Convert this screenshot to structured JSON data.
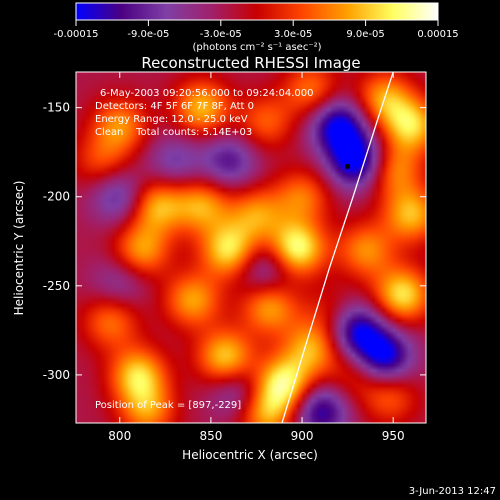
{
  "chart_data": {
    "type": "heatmap",
    "title": "Reconstructed RHESSI Image",
    "xlabel": "Heliocentric X (arcsec)",
    "ylabel": "Heliocentric Y (arcsec)",
    "xlim": [
      776,
      968
    ],
    "ylim": [
      -327,
      -130
    ],
    "xticks": [
      800,
      850,
      900,
      950
    ],
    "yticks": [
      -150,
      -200,
      -250,
      -300
    ],
    "xtick_labels": [
      "800",
      "850",
      "900",
      "950"
    ],
    "ytick_labels": [
      "-150",
      "-200",
      "-250",
      "-300"
    ],
    "colorbar": {
      "range": [
        -0.00015,
        0.00015
      ],
      "ticks": [
        -0.00015,
        -9e-05,
        -3e-05,
        3e-05,
        9e-05,
        0.00015
      ],
      "tick_labels": [
        "-0.00015",
        "-9.0e-05",
        "-3.0e-05",
        "3.0e-05",
        "9.0e-05",
        "0.00015"
      ],
      "unit_label": "(photons cm⁻² s⁻¹ asec⁻²)",
      "colormap_stops": [
        "#0000ff",
        "#4b0082",
        "#7f3fa6",
        "#a0206a",
        "#c80000",
        "#ff4500",
        "#ffa000",
        "#ffff60",
        "#ffffff"
      ]
    },
    "annotations": [
      "6-May-2003 09:20:56.000 to 09:24:04.000",
      "Detectors: 4F 5F 6F 7F 8F, Att 0",
      "Energy Range: 12.0 - 25.0 keV",
      "Clean    Total counts: 5.14E+03"
    ],
    "peak_label": "Position of Peak = [897,-229]",
    "peak": [
      897,
      -229
    ],
    "marker": [
      925,
      -183
    ],
    "limb_curve": [
      [
        889,
        -327
      ],
      [
        900,
        -290
      ],
      [
        915,
        -240
      ],
      [
        928,
        -200
      ],
      [
        942,
        -155
      ],
      [
        950,
        -130
      ]
    ],
    "blobs": [
      {
        "x": 800,
        "y": -160,
        "v": 9e-05
      },
      {
        "x": 845,
        "y": -150,
        "v": 0.00011
      },
      {
        "x": 880,
        "y": -158,
        "v": 7e-05
      },
      {
        "x": 905,
        "y": -140,
        "v": 8e-05
      },
      {
        "x": 945,
        "y": -145,
        "v": 0.0001
      },
      {
        "x": 960,
        "y": -160,
        "v": 0.00012
      },
      {
        "x": 950,
        "y": -185,
        "v": 9e-05
      },
      {
        "x": 960,
        "y": -210,
        "v": 0.00011
      },
      {
        "x": 935,
        "y": -230,
        "v": 9e-05
      },
      {
        "x": 955,
        "y": -255,
        "v": 0.00013
      },
      {
        "x": 820,
        "y": -205,
        "v": 0.00011
      },
      {
        "x": 845,
        "y": -205,
        "v": 0.0001
      },
      {
        "x": 875,
        "y": -210,
        "v": 9e-05
      },
      {
        "x": 900,
        "y": -200,
        "v": 8e-05
      },
      {
        "x": 812,
        "y": -230,
        "v": 0.0001
      },
      {
        "x": 860,
        "y": -230,
        "v": 0.00013
      },
      {
        "x": 897,
        "y": -229,
        "v": 0.00015
      },
      {
        "x": 840,
        "y": -258,
        "v": 0.0001
      },
      {
        "x": 882,
        "y": -262,
        "v": 0.0001
      },
      {
        "x": 795,
        "y": -270,
        "v": 8e-05
      },
      {
        "x": 810,
        "y": -300,
        "v": 0.00012
      },
      {
        "x": 858,
        "y": -290,
        "v": 0.00012
      },
      {
        "x": 890,
        "y": -305,
        "v": 0.00014
      },
      {
        "x": 905,
        "y": -285,
        "v": 0.0001
      },
      {
        "x": 815,
        "y": -320,
        "v": 9e-05
      },
      {
        "x": 880,
        "y": -322,
        "v": 0.0001
      },
      {
        "x": 928,
        "y": -300,
        "v": 5e-05
      },
      {
        "x": 948,
        "y": -312,
        "v": 7e-05
      },
      {
        "x": 790,
        "y": -180,
        "v": 6e-05
      },
      {
        "x": 915,
        "y": -265,
        "v": 4e-05
      },
      {
        "x": 930,
        "y": -180,
        "v": -0.00014
      },
      {
        "x": 920,
        "y": -160,
        "v": -0.00013
      },
      {
        "x": 930,
        "y": -275,
        "v": -0.00012
      },
      {
        "x": 945,
        "y": -290,
        "v": -0.00013
      },
      {
        "x": 910,
        "y": -320,
        "v": -0.00011
      },
      {
        "x": 800,
        "y": -200,
        "v": -8e-05
      },
      {
        "x": 830,
        "y": -180,
        "v": -6e-05
      },
      {
        "x": 860,
        "y": -180,
        "v": -8e-05
      },
      {
        "x": 880,
        "y": -240,
        "v": -7e-05
      },
      {
        "x": 865,
        "y": -310,
        "v": -6e-05
      },
      {
        "x": 800,
        "y": -248,
        "v": -5e-05
      }
    ]
  },
  "footer": {
    "date_stamp": "3-Jun-2013 12:47"
  }
}
